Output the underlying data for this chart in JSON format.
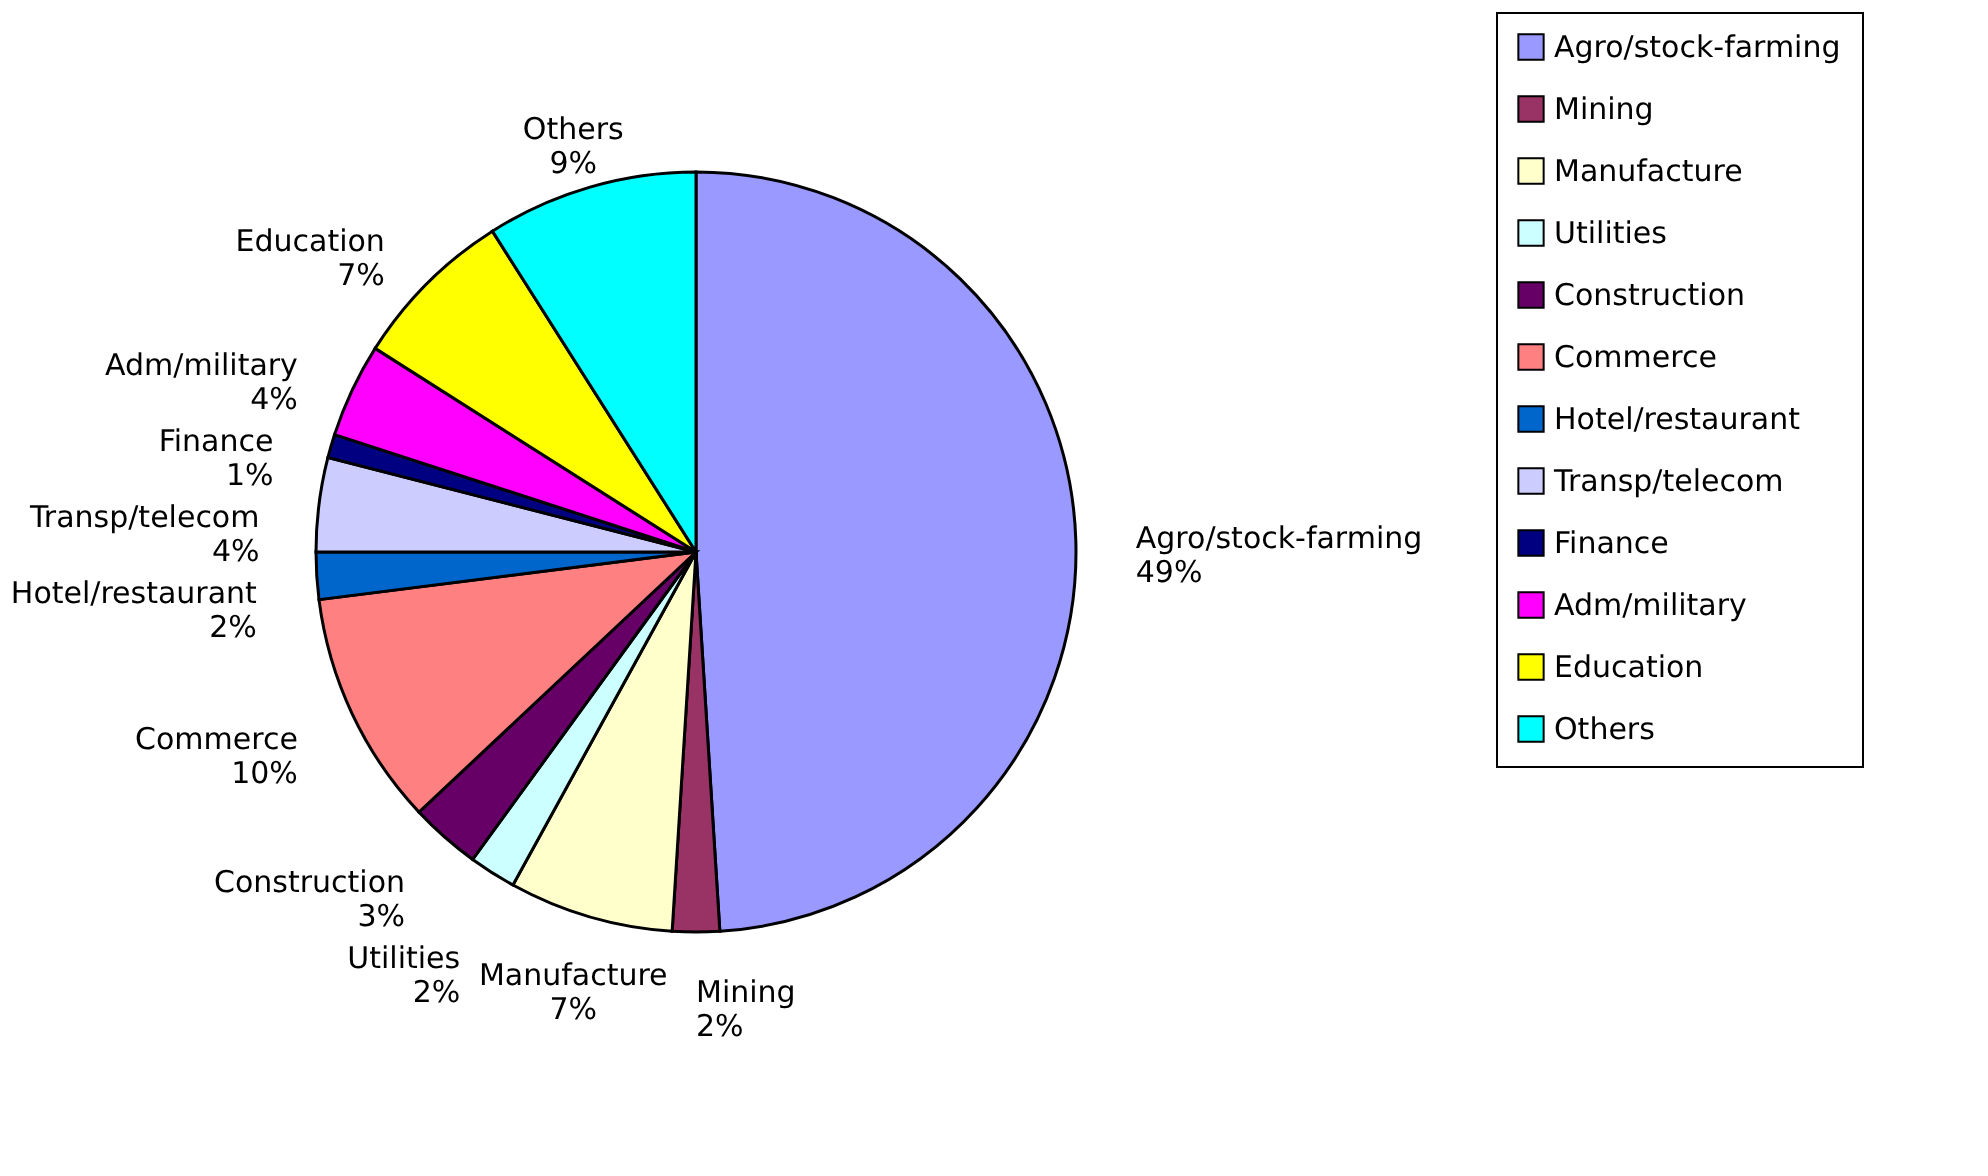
{
  "chart_data": {
    "type": "pie",
    "categories": [
      "Agro/stock-farming",
      "Mining",
      "Manufacture",
      "Utilities",
      "Construction",
      "Commerce",
      "Hotel/restaurant",
      "Transp/telecom",
      "Finance",
      "Adm/military",
      "Education",
      "Others"
    ],
    "values": [
      49,
      2,
      7,
      2,
      3,
      10,
      2,
      4,
      1,
      4,
      7,
      9
    ],
    "value_labels": [
      "49%",
      "2%",
      "7%",
      "2%",
      "3%",
      "10%",
      "2%",
      "4%",
      "1%",
      "4%",
      "7%",
      "9%"
    ],
    "colors": [
      "#9999ff",
      "#993366",
      "#ffffcc",
      "#ccffff",
      "#660066",
      "#ff8080",
      "#0066cc",
      "#ccccff",
      "#000080",
      "#ff00ff",
      "#ffff00",
      "#00ffff"
    ],
    "legend": "right"
  }
}
